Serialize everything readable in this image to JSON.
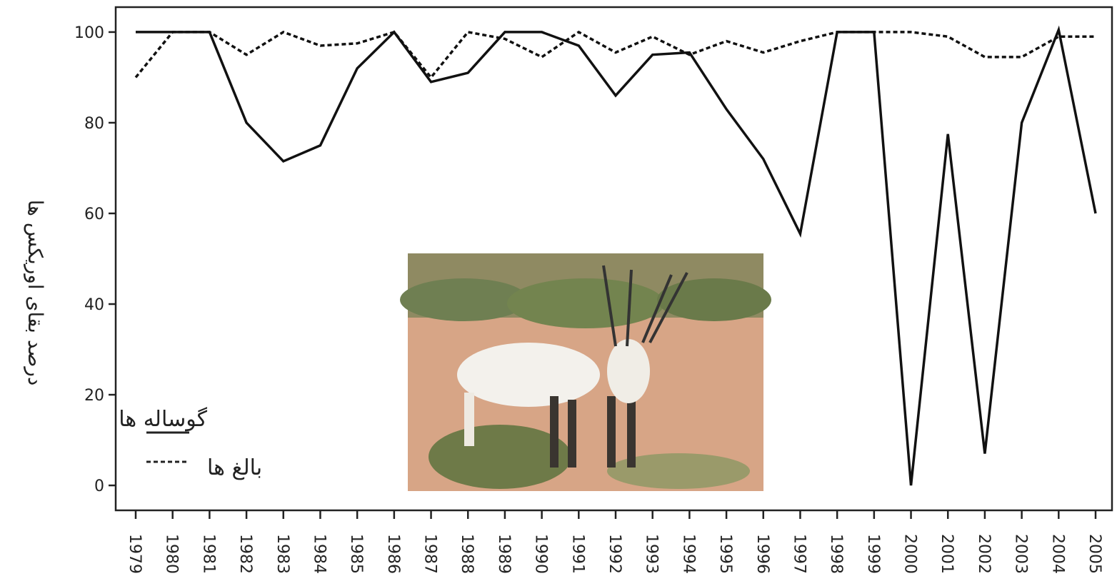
{
  "chart_data": {
    "type": "line",
    "y_label": "درصد بقای اوریکس ها",
    "categories": [
      "1979",
      "1980",
      "1981",
      "1982",
      "1983",
      "1984",
      "1985",
      "1986",
      "1987",
      "1988",
      "1989",
      "1990",
      "1991",
      "1992",
      "1993",
      "1994",
      "1995",
      "1996",
      "1997",
      "1998",
      "1999",
      "2000",
      "2001",
      "2002",
      "2003",
      "2004",
      "2005"
    ],
    "series": [
      {
        "name": "گوساله ها",
        "color": "#111111",
        "style": "solid",
        "values": [
          100,
          100,
          100,
          80,
          71.5,
          75,
          92,
          100,
          89,
          91,
          100,
          100,
          97,
          86,
          95,
          95.5,
          83,
          72,
          55.5,
          100,
          100,
          0,
          77.5,
          7,
          80,
          100.5,
          60
        ]
      },
      {
        "name": "بالغ ها",
        "color": "#111111",
        "style": "dashed",
        "values": [
          90,
          100,
          100,
          95,
          100,
          97,
          97.5,
          100,
          90,
          100,
          98.5,
          94.5,
          100,
          95.5,
          99,
          95,
          98,
          95.5,
          98,
          100,
          100,
          100,
          99,
          94.5,
          94.5,
          99,
          99
        ]
      }
    ],
    "ylim": [
      -5.5,
      105.5
    ],
    "yticks": [
      0,
      20,
      40,
      60,
      80,
      100
    ],
    "grid": false
  }
}
